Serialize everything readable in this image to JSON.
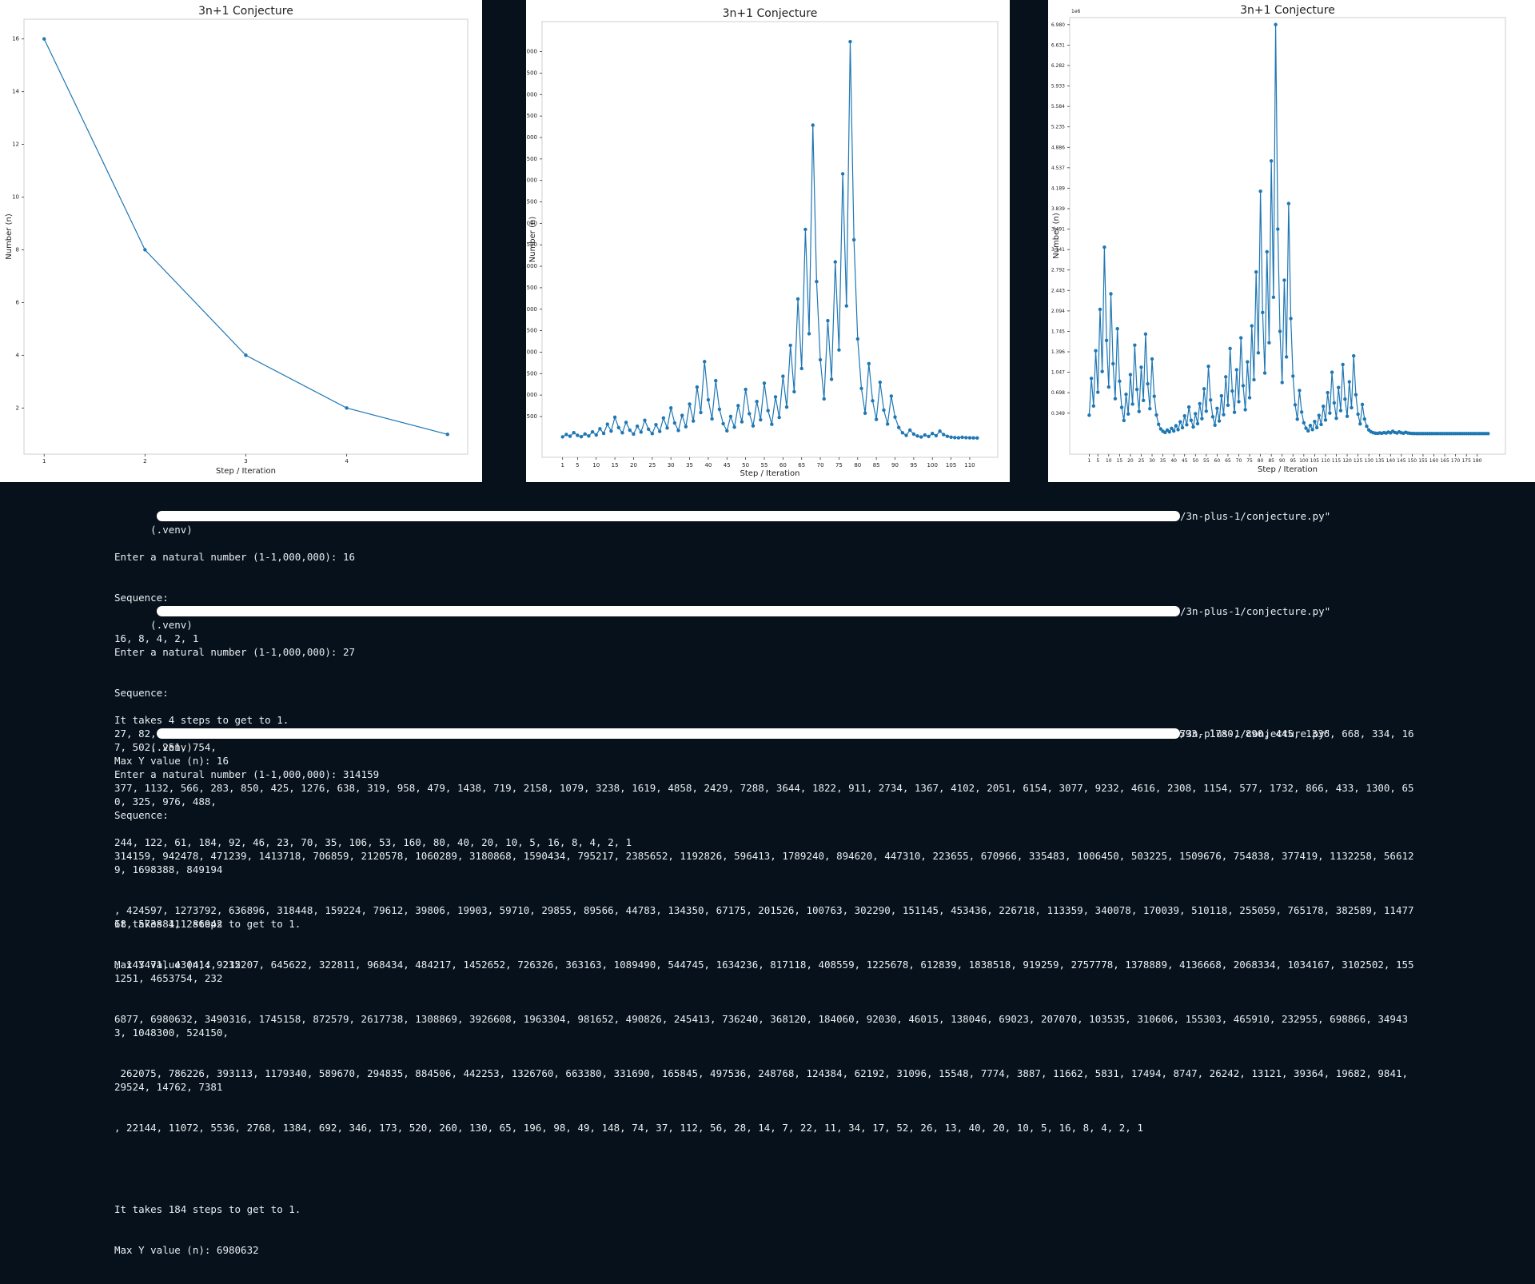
{
  "plots": [
    {
      "title": "3n+1 Conjecture",
      "xlabel": "Step / Iteration",
      "ylabel": "Number (n)"
    },
    {
      "title": "3n+1 Conjecture",
      "xlabel": "Step / Iteration",
      "ylabel": "Number (n)"
    },
    {
      "title": "3n+1 Conjecture",
      "xlabel": "Step / Iteration",
      "ylabel": "Number (n)",
      "offset_label": "1e6"
    }
  ],
  "chart_data": [
    {
      "type": "line",
      "title": "3n+1 Conjecture",
      "xlabel": "Step / Iteration",
      "ylabel": "Number (n)",
      "x": [
        1,
        2,
        3,
        4,
        5
      ],
      "y": [
        16,
        8,
        4,
        2,
        1
      ],
      "xticks": [
        1,
        2,
        3,
        4
      ],
      "yticks": [
        2,
        4,
        6,
        8,
        10,
        12,
        14,
        16
      ],
      "xlim": [
        0.8,
        5.2
      ],
      "ylim": [
        0.25,
        16.75
      ],
      "color": "#1f77b4",
      "marker": "o"
    },
    {
      "type": "line",
      "title": "3n+1 Conjecture",
      "xlabel": "Step / Iteration",
      "ylabel": "Number (n)",
      "x_start": 1,
      "y": [
        27,
        82,
        41,
        124,
        62,
        31,
        94,
        47,
        142,
        71,
        214,
        107,
        322,
        161,
        484,
        242,
        121,
        364,
        182,
        91,
        274,
        137,
        412,
        206,
        103,
        310,
        155,
        466,
        233,
        700,
        350,
        175,
        526,
        263,
        790,
        395,
        1186,
        593,
        1780,
        890,
        445,
        1336,
        668,
        334,
        167,
        502,
        251,
        754,
        377,
        1132,
        566,
        283,
        850,
        425,
        1276,
        638,
        319,
        958,
        479,
        1438,
        719,
        2158,
        1079,
        3238,
        1619,
        4858,
        2429,
        7288,
        3644,
        1822,
        911,
        2734,
        1367,
        4102,
        2051,
        6154,
        3077,
        9232,
        4616,
        2308,
        1154,
        577,
        1732,
        866,
        433,
        1300,
        650,
        325,
        976,
        488,
        244,
        122,
        61,
        184,
        92,
        46,
        23,
        70,
        35,
        106,
        53,
        160,
        80,
        40,
        20,
        10,
        5,
        16,
        8,
        4,
        2,
        1
      ],
      "xticks": [
        1,
        5,
        10,
        15,
        20,
        25,
        30,
        35,
        40,
        45,
        50,
        55,
        60,
        65,
        70,
        75,
        80,
        85,
        90,
        95,
        100,
        105,
        110
      ],
      "yticks": [
        500,
        1000,
        1500,
        2000,
        2500,
        3000,
        3500,
        4000,
        4500,
        5000,
        5500,
        6000,
        6500,
        7000,
        7500,
        8000,
        8500,
        9000
      ],
      "xlim": [
        -4.5,
        117.5
      ],
      "ylim": [
        -450,
        9700
      ],
      "color": "#1f77b4",
      "marker": "o"
    },
    {
      "type": "line",
      "title": "3n+1 Conjecture",
      "xlabel": "Step / Iteration",
      "ylabel": "Number (n)",
      "y_unit_label": "1e6",
      "x_start": 1,
      "y": [
        314159,
        942478,
        471239,
        1413718,
        706859,
        2120578,
        1060289,
        3180868,
        1590434,
        795217,
        2385652,
        1192826,
        596413,
        1789240,
        894620,
        447310,
        223655,
        670966,
        335483,
        1006450,
        503225,
        1509676,
        754838,
        377419,
        1132258,
        566129,
        1698388,
        849194,
        424597,
        1273792,
        636896,
        318448,
        159224,
        79612,
        39806,
        19903,
        59710,
        29855,
        89566,
        44783,
        134350,
        67175,
        201526,
        100763,
        302290,
        151145,
        453436,
        226718,
        113359,
        340078,
        170039,
        510118,
        255059,
        765178,
        382589,
        1147768,
        573884,
        286942,
        143471,
        430414,
        215207,
        645622,
        322811,
        968434,
        484217,
        1452652,
        726326,
        363163,
        1089490,
        544745,
        1634236,
        817118,
        408559,
        1225678,
        612839,
        1838518,
        919259,
        2757778,
        1378889,
        4136668,
        2068334,
        1034167,
        3102502,
        1551251,
        4653754,
        2326877,
        6980632,
        3490316,
        1745158,
        872579,
        2617738,
        1308869,
        3926608,
        1963304,
        981652,
        490826,
        245413,
        736240,
        368120,
        184060,
        92030,
        46015,
        138046,
        69023,
        207070,
        103535,
        310606,
        155303,
        465910,
        232955,
        698866,
        349433,
        1048300,
        524150,
        262075,
        786226,
        393113,
        1179340,
        589670,
        294835,
        884506,
        442253,
        1326760,
        663380,
        331690,
        165845,
        497536,
        248768,
        124384,
        62192,
        31096,
        15548,
        7774,
        3887,
        11662,
        5831,
        17494,
        8747,
        26242,
        13121,
        39364,
        19682,
        9841,
        29524,
        14762,
        7381,
        22144,
        11072,
        5536,
        2768,
        1384,
        692,
        346,
        173,
        520,
        260,
        130,
        65,
        196,
        98,
        49,
        148,
        74,
        37,
        112,
        56,
        28,
        14,
        7,
        22,
        11,
        34,
        17,
        52,
        26,
        13,
        40,
        20,
        10,
        5,
        16,
        8,
        4,
        2,
        1
      ],
      "xticks": [
        1,
        5,
        10,
        15,
        20,
        25,
        30,
        35,
        40,
        45,
        50,
        55,
        60,
        65,
        70,
        75,
        80,
        85,
        90,
        95,
        100,
        105,
        110,
        115,
        120,
        125,
        130,
        135,
        140,
        145,
        150,
        155,
        160,
        165,
        170,
        175,
        180
      ],
      "yticks": [
        0.349,
        0.698,
        1.047,
        1.396,
        1.745,
        2.094,
        2.443,
        2.792,
        3.141,
        3.491,
        3.839,
        4.189,
        4.537,
        4.886,
        5.235,
        5.584,
        5.933,
        6.282,
        6.631,
        6.98
      ],
      "ylim_millions": [
        -0.35,
        7.1
      ],
      "xlim": [
        -8,
        193
      ],
      "color": "#1f77b4",
      "marker": "o"
    }
  ],
  "terminal": {
    "runs": [
      {
        "venv": "(.venv)",
        "path_tail": "/3n-plus-1/conjecture.py\"",
        "lines": [
          "Enter a natural number (1-1,000,000): 16",
          "Sequence:",
          "16, 8, 4, 2, 1",
          "",
          "It takes 4 steps to get to 1.",
          "Max Y value (n): 16"
        ]
      },
      {
        "venv": "(.venv)",
        "path_tail": "/3n-plus-1/conjecture.py\"",
        "lines": [
          "Enter a natural number (1-1,000,000): 27",
          "Sequence:",
          "27, 82, 41, 124, 62, 31, 94, 47, 142, 71, 214, 107, 322, 161, 484, 242, 121, 364, 182, 91, 274, 137, 412, 206, 103, 310, 155, 466, 233, 700, 350, 175, 526, 263, 790, 395, 1186, 593, 1780, 890, 445, 1336, 668, 334, 167, 502, 251, 754,",
          "377, 1132, 566, 283, 850, 425, 1276, 638, 319, 958, 479, 1438, 719, 2158, 1079, 3238, 1619, 4858, 2429, 7288, 3644, 1822, 911, 2734, 1367, 4102, 2051, 6154, 3077, 9232, 4616, 2308, 1154, 577, 1732, 866, 433, 1300, 650, 325, 976, 488,",
          "244, 122, 61, 184, 92, 46, 23, 70, 35, 106, 53, 160, 80, 40, 20, 10, 5, 16, 8, 4, 2, 1",
          "",
          "It takes 111 steps to get to 1.",
          "Max Y value (n): 9232"
        ]
      },
      {
        "venv": "(.venv)",
        "path_tail": "/3n-plus-1/conjecture.py\"",
        "lines": [
          "Enter a natural number (1-1,000,000): 314159",
          "Sequence:",
          "314159, 942478, 471239, 1413718, 706859, 2120578, 1060289, 3180868, 1590434, 795217, 2385652, 1192826, 596413, 1789240, 894620, 447310, 223655, 670966, 335483, 1006450, 503225, 1509676, 754838, 377419, 1132258, 566129, 1698388, 849194",
          ", 424597, 1273792, 636896, 318448, 159224, 79612, 39806, 19903, 59710, 29855, 89566, 44783, 134350, 67175, 201526, 100763, 302290, 151145, 453436, 226718, 113359, 340078, 170039, 510118, 255059, 765178, 382589, 1147768, 573884, 286942",
          ", 143471, 430414, 215207, 645622, 322811, 968434, 484217, 1452652, 726326, 363163, 1089490, 544745, 1634236, 817118, 408559, 1225678, 612839, 1838518, 919259, 2757778, 1378889, 4136668, 2068334, 1034167, 3102502, 1551251, 4653754, 232",
          "6877, 6980632, 3490316, 1745158, 872579, 2617738, 1308869, 3926608, 1963304, 981652, 490826, 245413, 736240, 368120, 184060, 92030, 46015, 138046, 69023, 207070, 103535, 310606, 155303, 465910, 232955, 698866, 349433, 1048300, 524150,",
          " 262075, 786226, 393113, 1179340, 589670, 294835, 884506, 442253, 1326760, 663380, 331690, 165845, 497536, 248768, 124384, 62192, 31096, 15548, 7774, 3887, 11662, 5831, 17494, 8747, 26242, 13121, 39364, 19682, 9841, 29524, 14762, 7381",
          ", 22144, 11072, 5536, 2768, 1384, 692, 346, 173, 520, 260, 130, 65, 196, 98, 49, 148, 74, 37, 112, 56, 28, 14, 7, 22, 11, 34, 17, 52, 26, 13, 40, 20, 10, 5, 16, 8, 4, 2, 1",
          "",
          "It takes 184 steps to get to 1.",
          "Max Y value (n): 6980632"
        ]
      }
    ]
  }
}
